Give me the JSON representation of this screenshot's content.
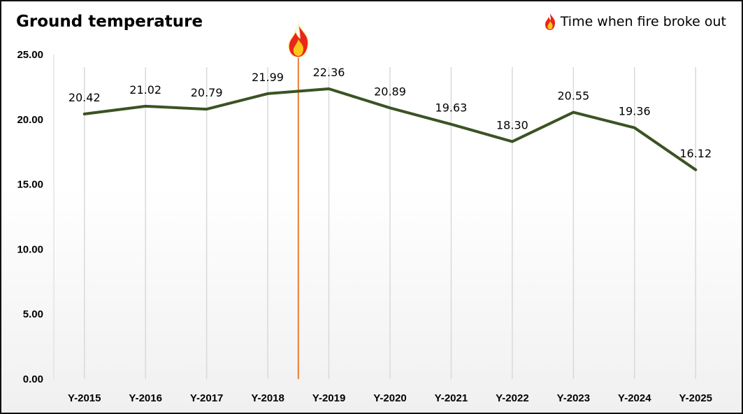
{
  "chart_data": {
    "type": "line",
    "title": "Ground temperature",
    "categories": [
      "Y-2015",
      "Y-2016",
      "Y-2017",
      "Y-2018",
      "Y-2019",
      "Y-2020",
      "Y-2021",
      "Y-2022",
      "Y-2023",
      "Y-2024",
      "Y-2025"
    ],
    "series": [
      {
        "values": [
          20.42,
          21.02,
          20.79,
          21.99,
          22.36,
          20.89,
          19.63,
          18.3,
          20.55,
          19.36,
          16.12
        ],
        "data_labels": [
          "20.42",
          "21.02",
          "20.79",
          "21.99",
          "22.36",
          "20.89",
          "19.63",
          "18.30",
          "20.55",
          "19.36",
          "16.12"
        ],
        "color": "#3b5323"
      }
    ],
    "y_ticks": [
      "0.00",
      "5.00",
      "10.00",
      "15.00",
      "20.00",
      "25.00"
    ],
    "y_tick_values": [
      0,
      5,
      10,
      15,
      20,
      25
    ],
    "ylim": [
      0,
      25
    ],
    "grid": "vertical",
    "legend_position": "top-right",
    "annotation": {
      "label": "Time when fire broke out",
      "between_categories": [
        "Y-2018",
        "Y-2019"
      ],
      "line_color": "#ed7d31",
      "icon": "fire-icon"
    }
  }
}
